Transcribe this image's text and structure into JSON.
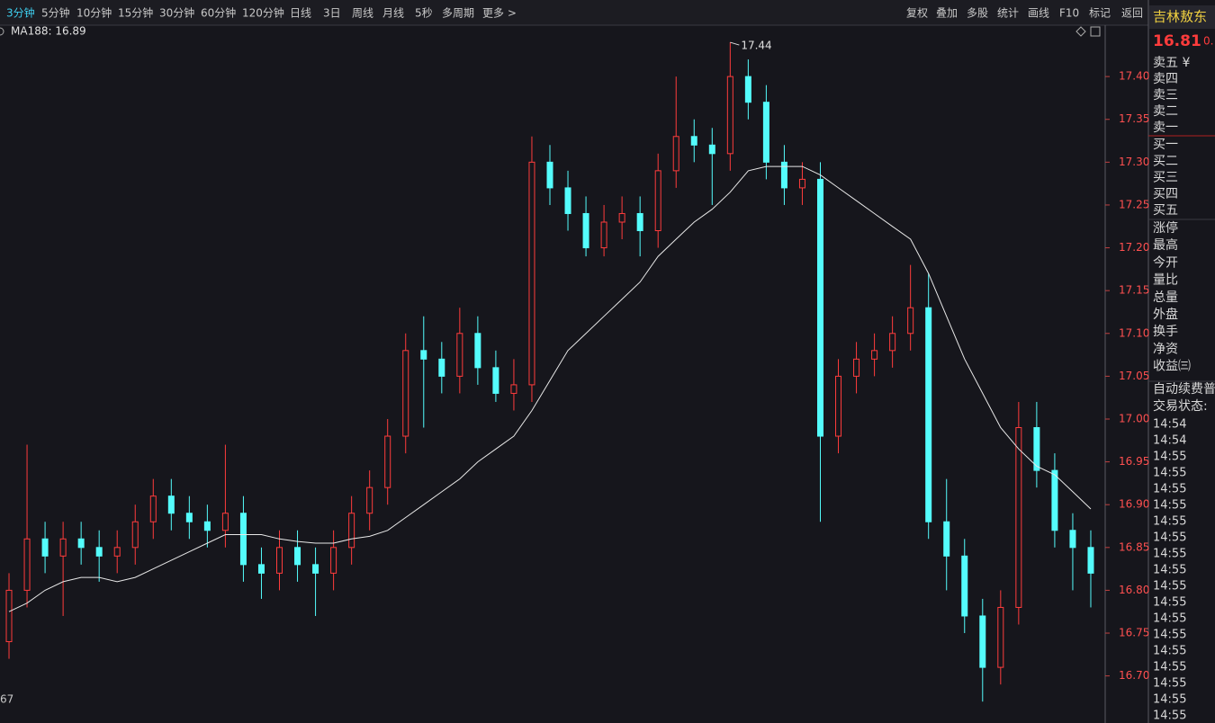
{
  "toolbar": {
    "periods": [
      "3分钟",
      "5分钟",
      "10分钟",
      "15分钟",
      "30分钟",
      "60分钟",
      "120分钟",
      "日线",
      "3日",
      "周线",
      "月线",
      "5秒",
      "多周期",
      "更多 >"
    ],
    "active": 0,
    "tools": [
      "复权",
      "叠加",
      "多股",
      "统计",
      "画线",
      "F10",
      "标记",
      "返回"
    ]
  },
  "chart_data": {
    "type": "candlestick",
    "ma_label": "MA188: 16.89",
    "max_annotation": 17.44,
    "footer": "67",
    "open": [
      16.74,
      16.8,
      16.86,
      16.84,
      16.86,
      16.85,
      16.84,
      16.85,
      16.88,
      16.91,
      16.89,
      16.88,
      16.87,
      16.89,
      16.83,
      16.82,
      16.85,
      16.83,
      16.82,
      16.85,
      16.89,
      16.92,
      16.98,
      17.08,
      17.07,
      17.05,
      17.1,
      17.06,
      17.03,
      17.04,
      17.3,
      17.27,
      17.24,
      17.2,
      17.23,
      17.24,
      17.22,
      17.29,
      17.33,
      17.32,
      17.31,
      17.4,
      17.37,
      17.3,
      17.27,
      17.28,
      16.98,
      17.05,
      17.07,
      17.08,
      17.1,
      17.13,
      16.88,
      16.84,
      16.77,
      16.71,
      16.78,
      16.99,
      16.94,
      16.87,
      16.85
    ],
    "high": [
      16.82,
      16.97,
      16.88,
      16.88,
      16.88,
      16.87,
      16.87,
      16.9,
      16.93,
      16.93,
      16.91,
      16.9,
      16.97,
      16.91,
      16.85,
      16.87,
      16.87,
      16.85,
      16.87,
      16.91,
      16.94,
      17.0,
      17.1,
      17.12,
      17.09,
      17.13,
      17.12,
      17.08,
      17.07,
      17.33,
      17.32,
      17.29,
      17.26,
      17.25,
      17.26,
      17.26,
      17.31,
      17.4,
      17.35,
      17.34,
      17.44,
      17.42,
      17.39,
      17.32,
      17.3,
      17.3,
      17.07,
      17.09,
      17.1,
      17.12,
      17.18,
      17.17,
      16.93,
      16.86,
      16.79,
      16.8,
      17.02,
      17.02,
      16.96,
      16.89,
      16.87
    ],
    "low": [
      16.72,
      16.78,
      16.82,
      16.77,
      16.83,
      16.81,
      16.82,
      16.83,
      16.86,
      16.87,
      16.86,
      16.85,
      16.85,
      16.81,
      16.79,
      16.8,
      16.81,
      16.77,
      16.8,
      16.83,
      16.87,
      16.9,
      16.96,
      16.99,
      17.03,
      17.03,
      17.04,
      17.02,
      17.01,
      17.02,
      17.25,
      17.22,
      17.19,
      17.19,
      17.21,
      17.19,
      17.2,
      17.27,
      17.3,
      17.25,
      17.29,
      17.35,
      17.28,
      17.25,
      17.25,
      16.88,
      16.96,
      17.03,
      17.05,
      17.06,
      17.08,
      16.86,
      16.8,
      16.75,
      16.67,
      16.69,
      16.76,
      16.92,
      16.85,
      16.8,
      16.78
    ],
    "close": [
      16.8,
      16.86,
      16.84,
      16.86,
      16.85,
      16.84,
      16.85,
      16.88,
      16.91,
      16.89,
      16.88,
      16.87,
      16.89,
      16.83,
      16.82,
      16.85,
      16.83,
      16.82,
      16.85,
      16.89,
      16.92,
      16.98,
      17.08,
      17.07,
      17.05,
      17.1,
      17.06,
      17.03,
      17.04,
      17.3,
      17.27,
      17.24,
      17.2,
      17.23,
      17.24,
      17.22,
      17.29,
      17.33,
      17.32,
      17.31,
      17.4,
      17.37,
      17.3,
      17.27,
      17.28,
      16.98,
      17.05,
      17.07,
      17.08,
      17.1,
      17.13,
      16.88,
      16.84,
      16.77,
      16.71,
      16.78,
      16.99,
      16.94,
      16.87,
      16.85,
      16.82
    ],
    "ma": {
      "color": "#e8e8e8",
      "values": [
        16.775,
        16.785,
        16.8,
        16.81,
        16.815,
        16.815,
        16.81,
        16.815,
        16.825,
        16.835,
        16.845,
        16.855,
        16.865,
        16.865,
        16.865,
        16.86,
        16.857,
        16.855,
        16.855,
        16.86,
        16.863,
        16.87,
        16.885,
        16.9,
        16.915,
        16.93,
        16.95,
        16.965,
        16.98,
        17.01,
        17.045,
        17.08,
        17.1,
        17.12,
        17.14,
        17.16,
        17.19,
        17.21,
        17.23,
        17.245,
        17.265,
        17.29,
        17.295,
        17.295,
        17.295,
        17.285,
        17.27,
        17.255,
        17.24,
        17.225,
        17.21,
        17.17,
        17.12,
        17.07,
        17.03,
        16.99,
        16.965,
        16.945,
        16.935,
        16.915,
        16.895
      ]
    },
    "up_color": "#ff3c3c",
    "down_color": "#54fcfc",
    "ylim": [
      16.645,
      17.46
    ],
    "yticks": [
      {
        "value": 16.7,
        "label": "16.70"
      },
      16.75,
      {
        "value": 16.8,
        "label": "16.80"
      },
      16.85,
      {
        "value": 16.9,
        "label": "16.90"
      },
      16.95,
      {
        "value": 17.0,
        "label": "17.00"
      },
      17.05,
      {
        "value": 17.1,
        "label": "17.10"
      },
      17.15,
      {
        "value": 17.2,
        "label": "17.20"
      },
      17.25,
      {
        "value": 17.3,
        "label": "17.30"
      },
      17.35,
      {
        "value": 17.4,
        "label": "17.40"
      }
    ]
  },
  "quote_panel": {
    "name": "吉林敖东",
    "price": "16.81",
    "change": "0.",
    "labels": [
      "卖五 ¥",
      "卖四",
      "卖三",
      "卖二",
      "卖一",
      "买一",
      "买二",
      "买三",
      "买四",
      "买五",
      "涨停",
      "最高",
      "今开",
      "量比",
      "总量",
      "外盘",
      "换手",
      "净资",
      "收益㈢"
    ],
    "auto_renew": "自动续费普",
    "status": "交易状态:",
    "times": [
      "14:54",
      "14:54",
      "14:55",
      "14:55",
      "14:55",
      "14:55",
      "14:55",
      "14:55",
      "14:55",
      "14:55",
      "14:55",
      "14:55",
      "14:55",
      "14:55",
      "14:55",
      "14:55",
      "14:55",
      "14:55",
      "14:55"
    ]
  }
}
